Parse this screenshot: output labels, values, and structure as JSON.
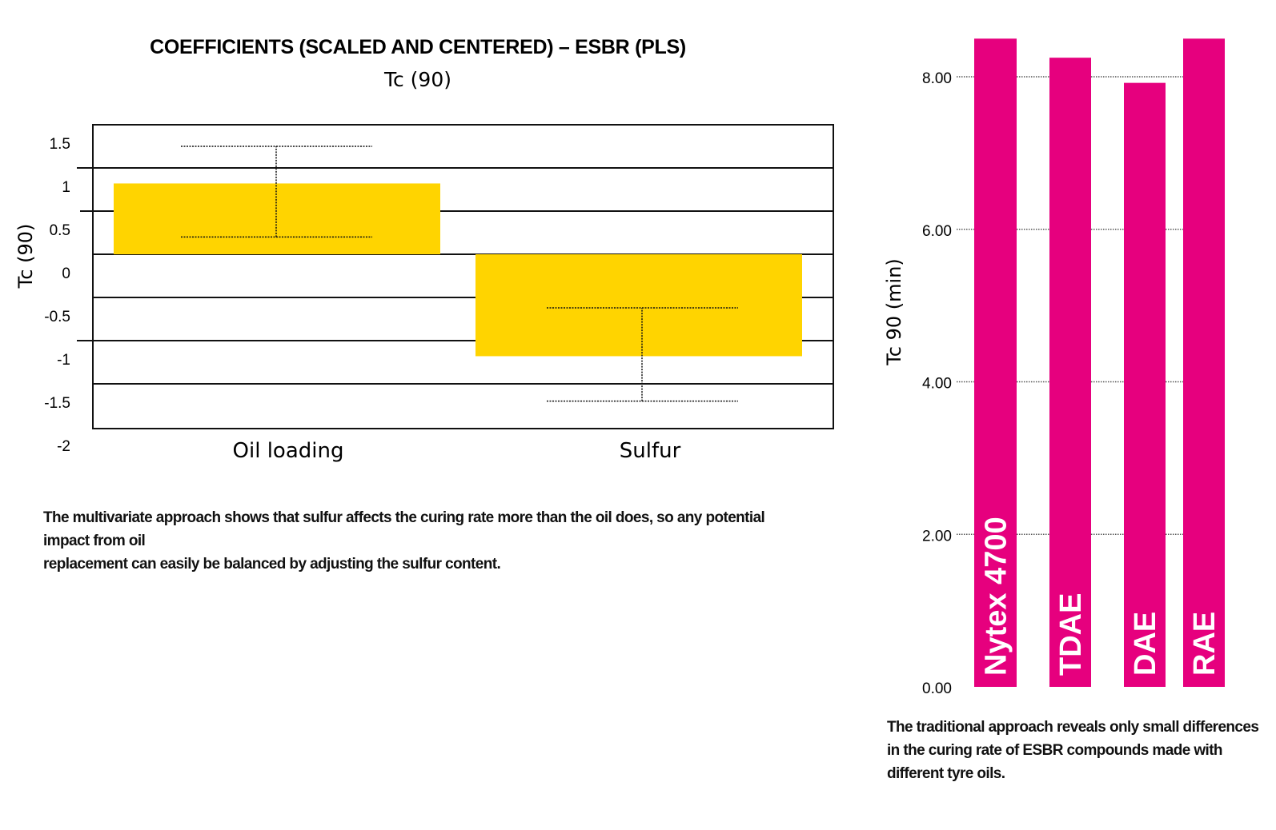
{
  "chart_data": [
    {
      "type": "bar",
      "title": "COEFFICIENTS (SCALED AND CENTERED) – ESBR (PLS)",
      "subtitle": "Tc (90)",
      "ylabel": "Tc (90)",
      "xlabel": "",
      "categories": [
        "Oil loading",
        "Sulfur"
      ],
      "values": [
        0.82,
        -1.18
      ],
      "error_bars": [
        [
          0.2,
          1.25
        ],
        [
          -1.7,
          -0.62
        ]
      ],
      "ylim": [
        -2,
        1.5
      ],
      "yticks": [
        "1.5",
        "1",
        "0.5",
        "0",
        "-0.5",
        "-1",
        "-1.5",
        "-2"
      ],
      "bar_color": "#FFD400",
      "grid": true
    },
    {
      "type": "bar",
      "ylabel": "Tc 90 (min)",
      "categories": [
        "Nytex 4700",
        "TDAE",
        "DAE",
        "RAE"
      ],
      "values": [
        8.5,
        8.25,
        7.92,
        8.5
      ],
      "ylim": [
        0,
        8.5
      ],
      "yticks": [
        "0.00",
        "2.00",
        "4.00",
        "6.00",
        "8.00"
      ],
      "bar_color": "#E6007E",
      "grid": true
    }
  ],
  "captions": {
    "left": [
      "The multivariate approach shows that sulfur affects the curing rate more than the oil does, so any potential impact from oil",
      "replacement can easily be balanced by adjusting the sulfur content."
    ],
    "right": [
      "The traditional approach reveals only small differences",
      "in the curing rate of ESBR compounds made with",
      "different tyre oils."
    ]
  }
}
